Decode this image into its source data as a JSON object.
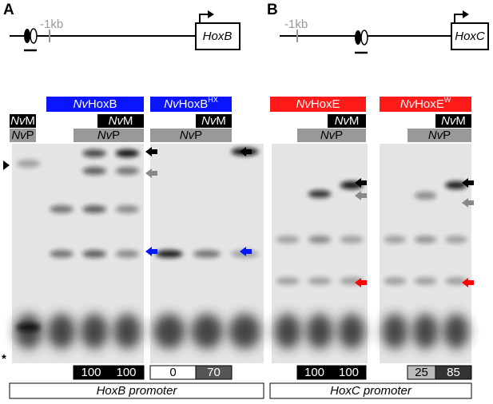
{
  "panel_a": {
    "letter": "A",
    "scale_label": "-1kb",
    "gene": "HoxB",
    "proteins": [
      {
        "prefix": "Nv",
        "name": "HoxB"
      },
      {
        "prefix": "Nv",
        "name": "HoxB",
        "sup": "HX"
      }
    ],
    "cofactors": {
      "m_prefix": "Nv",
      "m": "M",
      "p_prefix": "Nv",
      "p": "P"
    },
    "free_probe": "*",
    "quant": [
      100,
      100,
      0,
      70
    ],
    "promoter": "HoxB promoter"
  },
  "panel_b": {
    "letter": "B",
    "scale_label": "-1kb",
    "gene": "HoxC",
    "proteins": [
      {
        "prefix": "Nv",
        "name": "HoxE"
      },
      {
        "prefix": "Nv",
        "name": "HoxE",
        "sup": "W"
      }
    ],
    "cofactors": {
      "m_prefix": "Nv",
      "m": "M",
      "p_prefix": "Nv",
      "p": "P"
    },
    "quant": [
      100,
      100,
      25,
      85
    ],
    "promoter": "HoxC promoter"
  }
}
